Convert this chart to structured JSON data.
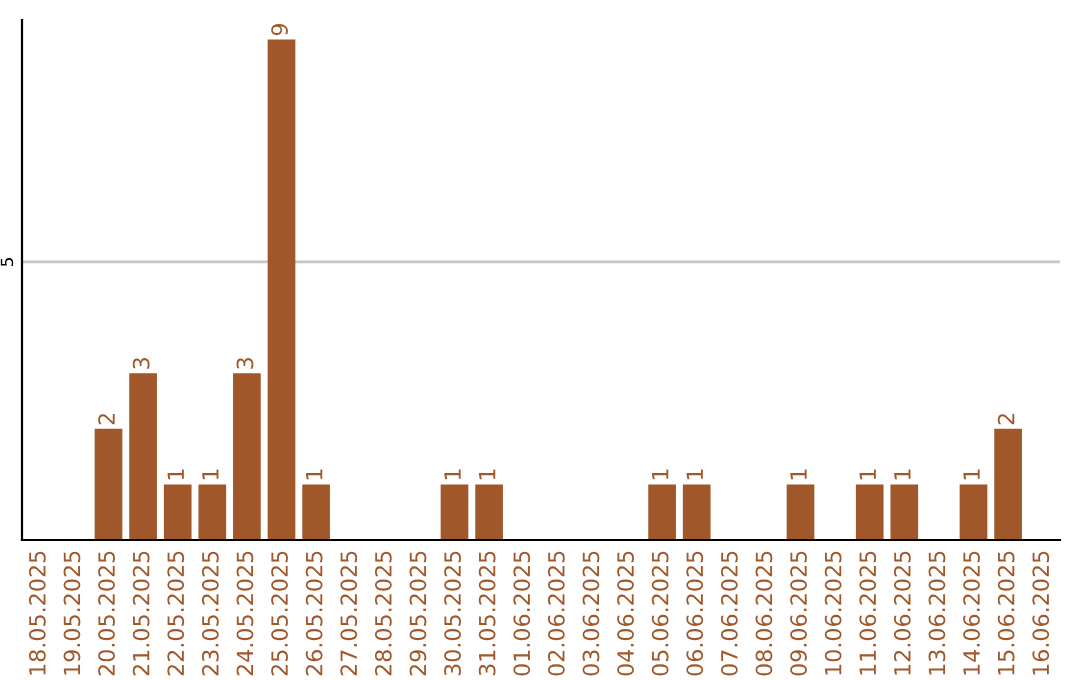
{
  "chart_data": {
    "type": "bar",
    "categories": [
      "18.05.2025",
      "19.05.2025",
      "20.05.2025",
      "21.05.2025",
      "22.05.2025",
      "23.05.2025",
      "24.05.2025",
      "25.05.2025",
      "26.05.2025",
      "27.05.2025",
      "28.05.2025",
      "29.05.2025",
      "30.05.2025",
      "31.05.2025",
      "01.06.2025",
      "02.06.2025",
      "03.06.2025",
      "04.06.2025",
      "05.06.2025",
      "06.06.2025",
      "07.06.2025",
      "08.06.2025",
      "09.06.2025",
      "10.06.2025",
      "11.06.2025",
      "12.06.2025",
      "13.06.2025",
      "14.06.2025",
      "15.06.2025",
      "16.06.2025"
    ],
    "values": [
      0,
      0,
      2,
      3,
      1,
      1,
      3,
      9,
      1,
      0,
      0,
      0,
      1,
      1,
      0,
      0,
      0,
      0,
      1,
      1,
      0,
      0,
      1,
      0,
      1,
      1,
      0,
      1,
      2,
      0
    ],
    "value_labels": [
      null,
      null,
      "2",
      "3",
      "1",
      "1",
      "3",
      "9",
      "1",
      null,
      null,
      null,
      "1",
      "1",
      null,
      null,
      null,
      null,
      "1",
      "1",
      null,
      null,
      "1",
      null,
      "1",
      "1",
      null,
      "1",
      "2",
      null
    ],
    "color": "#a0582a",
    "ylim": [
      0,
      9.35
    ],
    "yticks": [
      5
    ],
    "grid": "y",
    "legend": false
  }
}
